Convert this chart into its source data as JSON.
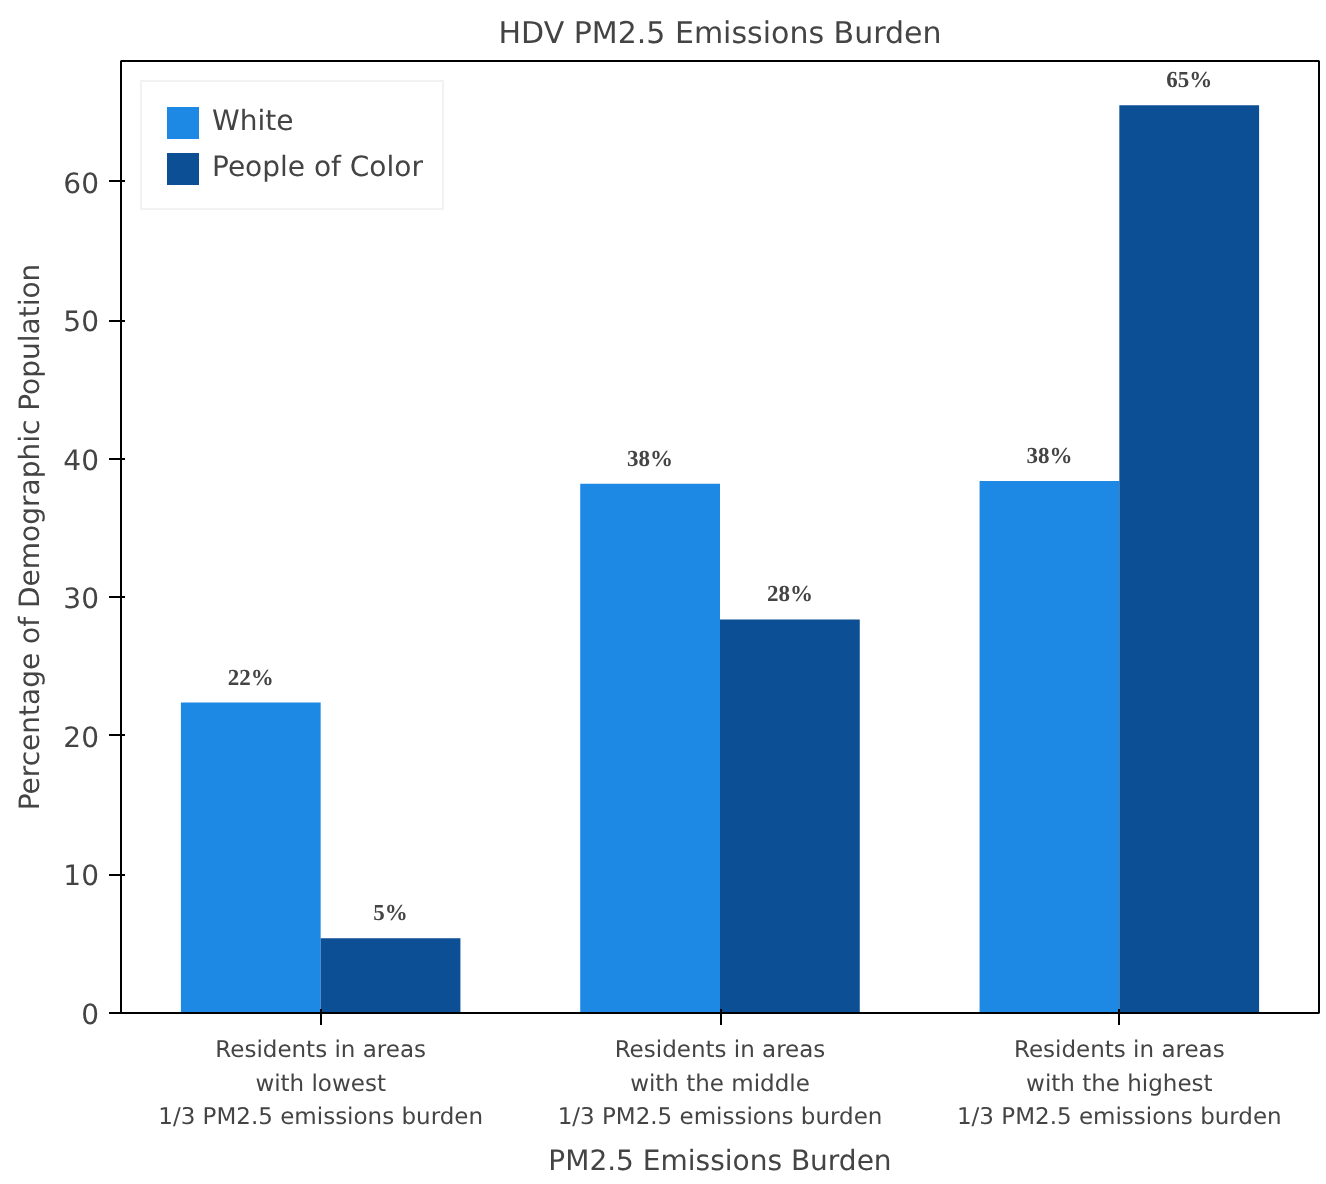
{
  "chart_data": {
    "type": "bar",
    "title": "HDV PM2.5 Emissions Burden",
    "xlabel": "PM2.5 Emissions Burden",
    "ylabel": "Percentage of Demographic Population",
    "categories": [
      "Residents in areas\nwith lowest\n1/3 PM2.5 emissions burden",
      "Residents in areas\nwith the middle\n1/3 PM2.5 emissions burden",
      "Residents in areas\nwith the highest\n1/3 PM2.5 emissions burden"
    ],
    "series": [
      {
        "name": "White",
        "color": "#1e88e5",
        "values": [
          22.4,
          38.2,
          38.4
        ],
        "value_labels": [
          "22%",
          "38%",
          "38%"
        ]
      },
      {
        "name": "People of Color",
        "color": "#0d4f94",
        "values": [
          5.4,
          28.4,
          65.5
        ],
        "value_labels": [
          "5%",
          "28%",
          "65%"
        ]
      }
    ],
    "ylim": [
      0,
      68.7
    ],
    "yticks": [
      0,
      10,
      20,
      30,
      40,
      50,
      60
    ],
    "grid": false,
    "legend": "top left"
  }
}
